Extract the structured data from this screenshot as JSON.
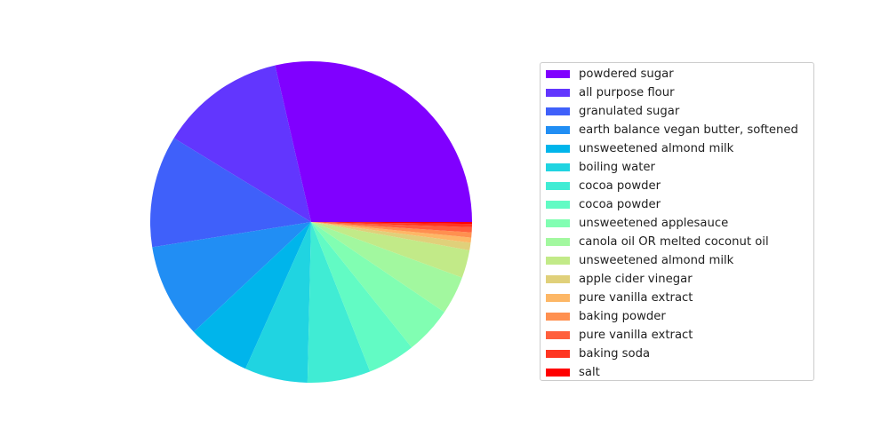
{
  "chart_data": {
    "type": "pie",
    "title": "",
    "start_angle_deg": 0,
    "direction": "counterclockwise",
    "legend_placement": "right",
    "slices": [
      {
        "label": "powdered sugar",
        "value": 30.5,
        "color": "#8000ff"
      },
      {
        "label": "all purpose flour",
        "value": 13.5,
        "color": "#6236fe"
      },
      {
        "label": "granulated sugar",
        "value": 12.0,
        "color": "#3f60fa"
      },
      {
        "label": "earth balance vegan butter, softened",
        "value": 10.1,
        "color": "#218ef4"
      },
      {
        "label": "unsweetened almond milk",
        "value": 6.75,
        "color": "#00b5eb"
      },
      {
        "label": "boiling water",
        "value": 6.75,
        "color": "#20d4e1"
      },
      {
        "label": "cocoa powder",
        "value": 6.75,
        "color": "#40ecd4"
      },
      {
        "label": "cocoa powder",
        "value": 5.1,
        "color": "#62fbc4"
      },
      {
        "label": "unsweetened applesauce",
        "value": 5.1,
        "color": "#81feb2"
      },
      {
        "label": "canola oil OR melted coconut oil",
        "value": 4.1,
        "color": "#a2f89f"
      },
      {
        "label": "unsweetened almond milk",
        "value": 3.0,
        "color": "#c2ea88"
      },
      {
        "label": "apple cider vinegar",
        "value": 0.8,
        "color": "#e0d07a"
      },
      {
        "label": "pure vanilla extract",
        "value": 0.55,
        "color": "#fdb766"
      },
      {
        "label": "baking powder",
        "value": 0.55,
        "color": "#ff9050"
      },
      {
        "label": "pure vanilla extract",
        "value": 0.55,
        "color": "#ff5f3c"
      },
      {
        "label": "baking soda",
        "value": 0.35,
        "color": "#ff3521"
      },
      {
        "label": "salt",
        "value": 0.2,
        "color": "#ff0000"
      }
    ]
  }
}
